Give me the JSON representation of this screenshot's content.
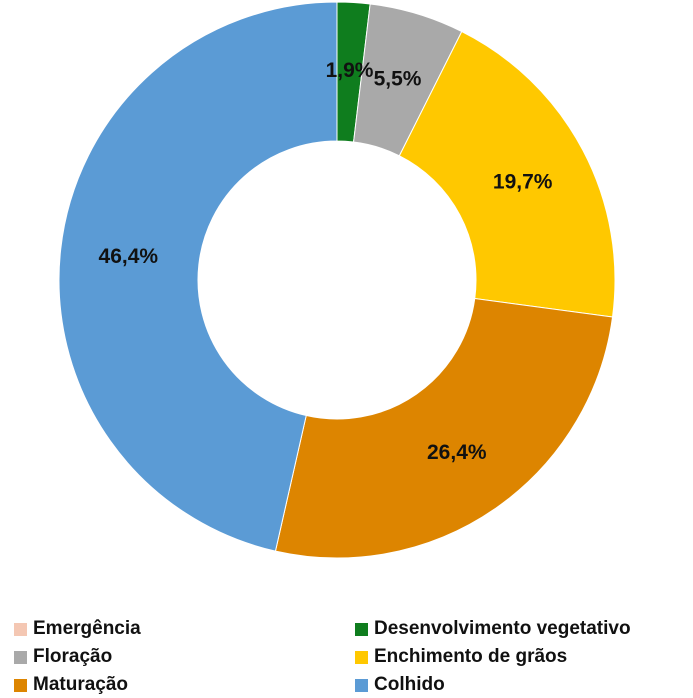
{
  "chart_data": {
    "type": "pie",
    "variant": "donut",
    "title": "",
    "categories": [
      "Emergência",
      "Desenvolvimento vegetativo",
      "Floração",
      "Enchimento de grãos",
      "Maturação",
      "Colhido"
    ],
    "values": [
      0.0,
      1.9,
      5.5,
      19.7,
      26.4,
      46.4
    ],
    "data_labels": [
      "",
      "1,9%",
      "5,5%",
      "19,7%",
      "26,4%",
      "46,4%"
    ],
    "colors": [
      "#f4c7b3",
      "#0f7d1e",
      "#a9a9a9",
      "#ffc800",
      "#dd8500",
      "#5b9bd5"
    ],
    "start_angle_deg": 0,
    "direction": "clockwise",
    "legend_position": "bottom"
  }
}
